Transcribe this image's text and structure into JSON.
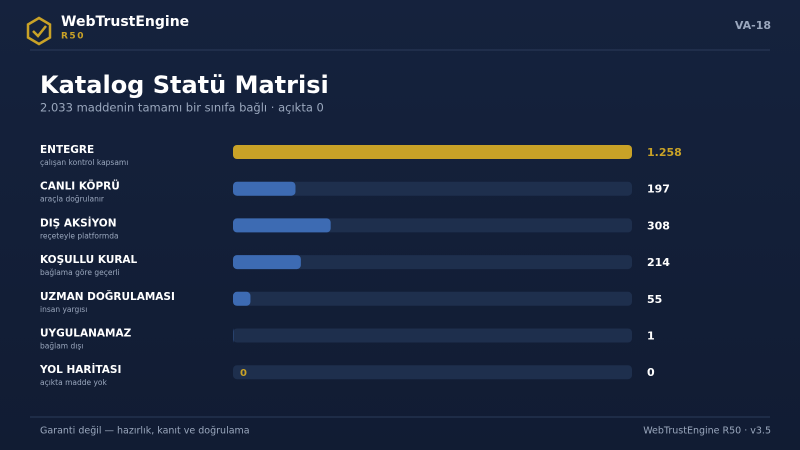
{
  "header": {
    "brand": "WebTrustEngine",
    "release": "R50",
    "code": "VA-18"
  },
  "chart_data": {
    "type": "bar",
    "orientation": "horizontal",
    "title": "Katalog Statü Matrisi",
    "subtitle": "2.033 maddenin tamamı bir sınıfa bağlı · açıkta 0",
    "categories": [
      "ENTEGRE",
      "CANLI KÖPRÜ",
      "DIŞ AKSİYON",
      "KOŞULLU KURAL",
      "UZMAN DOĞRULAMASI",
      "UYGULANAMAZ",
      "YOL HARİTASI"
    ],
    "descriptions": [
      "çalışan kontrol kapsamı",
      "araçla doğrulanır",
      "reçeteyle platformda",
      "bağlama göre geçerli",
      "insan yargısı",
      "bağlam dışı",
      "açıkta madde yok"
    ],
    "values": [
      1258,
      197,
      308,
      214,
      55,
      1,
      0
    ],
    "value_labels": [
      "1.258",
      "197",
      "308",
      "214",
      "55",
      "1",
      "0"
    ],
    "colors": [
      "#c9a227",
      "#3d6bb3",
      "#3d6bb3",
      "#3d6bb3",
      "#3d6bb3",
      "#3d6bb3",
      "#3d6bb3"
    ],
    "xlim": [
      0,
      1258
    ]
  },
  "footer": {
    "left": "Garanti değil — hazırlık, kanıt ve doğrulama",
    "right": "WebTrustEngine R50 · v3.5"
  }
}
